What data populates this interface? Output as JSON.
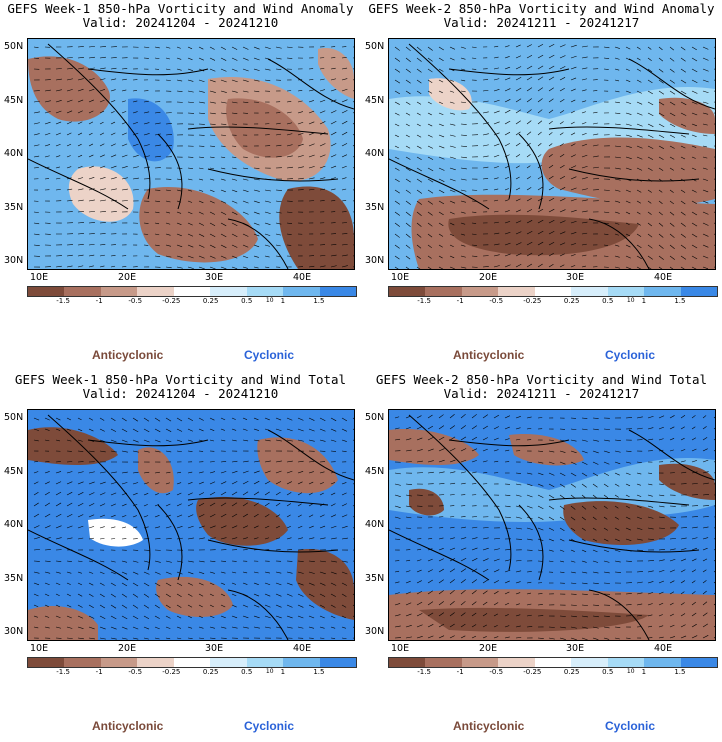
{
  "colors": {
    "strong_anti": "#7e4b3a",
    "anti": "#a8705f",
    "mid_anti": "#c79a89",
    "weak_anti": "#ecd3c8",
    "neutral": "#ffffff",
    "weak_cyc": "#d7eefb",
    "mid_cyc": "#a6dbf6",
    "cyc": "#6fb7ee",
    "strong_cyc": "#3a88e6",
    "extreme_cyc": "#1f6fe0"
  },
  "colorbar": {
    "ticks": [
      "-1.5",
      "-1",
      "-0.5",
      "-0.25",
      "0.25",
      "0.5",
      "1",
      "1.5"
    ],
    "ten_mark": "10"
  },
  "lat_labels": [
    "50N",
    "45N",
    "40N",
    "35N",
    "30N"
  ],
  "lon_labels": [
    "10E",
    "20E",
    "30E",
    "40E"
  ],
  "legend": {
    "anticyclonic": "Anticyclonic",
    "cyclonic": "Cyclonic"
  },
  "panels": [
    {
      "title_line1": "GEFS Week-1 850-hPa Vorticity and Wind Anomaly",
      "title_line2": "Valid: 20241204 - 20241210"
    },
    {
      "title_line1": "GEFS Week-2 850-hPa Vorticity and Wind Anomaly",
      "title_line2": "Valid: 20241211 - 20241217"
    },
    {
      "title_line1": "GEFS Week-1 850-hPa Vorticity and Wind Total",
      "title_line2": "Valid: 20241204 - 20241210"
    },
    {
      "title_line1": "GEFS Week-2 850-hPa Vorticity and Wind Total",
      "title_line2": "Valid: 20241211 - 20241217"
    }
  ]
}
